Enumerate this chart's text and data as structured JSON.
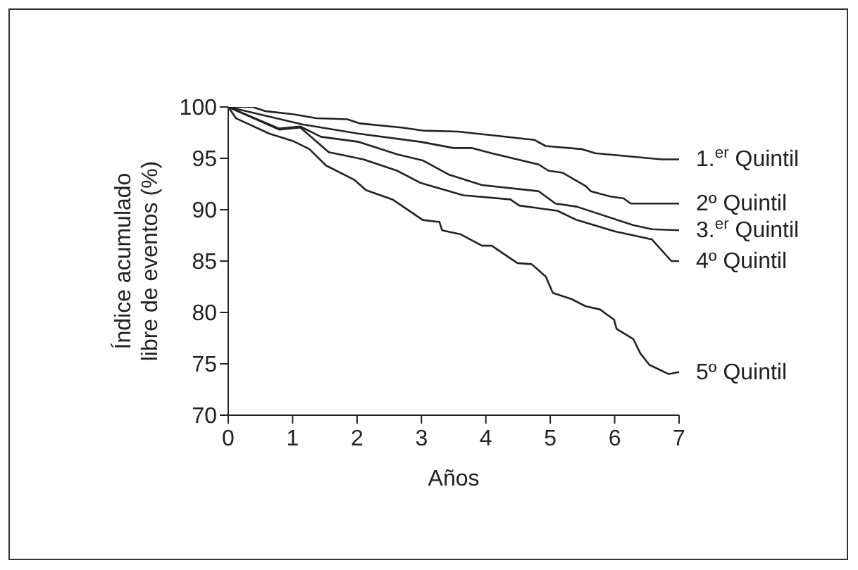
{
  "chart_data": {
    "type": "line",
    "xlabel": "Años",
    "ylabel": "Índice acumulado\nlibre de eventos (%)",
    "xlim": [
      0,
      7
    ],
    "xticks": [
      0,
      1,
      2,
      3,
      4,
      5,
      6,
      7
    ],
    "ylim": [
      70,
      100
    ],
    "yticks": [
      70,
      75,
      80,
      85,
      90,
      95,
      100
    ],
    "grid": false,
    "legend": false,
    "marker": "none",
    "line_style": "solid",
    "series": [
      {
        "name": "1.$^{er}$ Quintil",
        "color": "#222222",
        "x": [
          0,
          0.38,
          0.57,
          1.0,
          1.37,
          1.85,
          2.04,
          2.69,
          3.02,
          3.57,
          4.75,
          4.93,
          5.48,
          5.7,
          6.73,
          7
        ],
        "values": [
          100,
          100,
          99.6,
          99.3,
          98.9,
          98.8,
          98.4,
          98.0,
          97.7,
          97.6,
          96.8,
          96.2,
          95.9,
          95.5,
          94.9,
          94.9
        ]
      },
      {
        "name": "2º Quintil",
        "color": "#222222",
        "x": [
          0,
          1.15,
          2.03,
          2.99,
          3.5,
          3.79,
          4.09,
          4.82,
          4.97,
          5.19,
          5.55,
          5.63,
          5.92,
          6.14,
          6.25,
          7
        ],
        "values": [
          100,
          98.3,
          97.4,
          96.6,
          96.0,
          96.0,
          95.5,
          94.4,
          93.8,
          93.6,
          92.3,
          91.8,
          91.3,
          91.1,
          90.6,
          90.6
        ]
      },
      {
        "name": "3.$^{er}$ Quintil",
        "color": "#222222",
        "x": [
          0,
          0.79,
          1.12,
          1.44,
          2.03,
          2.62,
          3.02,
          3.43,
          3.94,
          4.82,
          5.08,
          5.41,
          6.29,
          6.58,
          7
        ],
        "values": [
          100,
          97.9,
          98.1,
          97.1,
          96.6,
          95.4,
          94.8,
          93.4,
          92.4,
          91.8,
          90.6,
          90.3,
          88.5,
          88.1,
          88.0
        ]
      },
      {
        "name": "4º Quintil",
        "color": "#222222",
        "x": [
          0,
          0.79,
          1.12,
          1.56,
          2.1,
          2.62,
          2.99,
          3.65,
          4.38,
          4.52,
          5.11,
          5.41,
          6.0,
          6.58,
          6.88,
          7
        ],
        "values": [
          100,
          97.8,
          98.0,
          95.6,
          94.9,
          93.8,
          92.6,
          91.4,
          91.0,
          90.4,
          89.9,
          89.0,
          87.9,
          87.1,
          85.0,
          85.0
        ]
      },
      {
        "name": "5º Quintil",
        "color": "#222222",
        "x": [
          0,
          0.12,
          0.64,
          1.0,
          1.26,
          1.52,
          1.96,
          2.14,
          2.55,
          3.02,
          3.28,
          3.32,
          3.61,
          3.94,
          4.09,
          4.49,
          4.71,
          4.93,
          5.04,
          5.33,
          5.55,
          5.77,
          5.99,
          6.03,
          6.29,
          6.4,
          6.54,
          6.84,
          7
        ],
        "values": [
          100,
          98.9,
          97.4,
          96.7,
          95.9,
          94.3,
          92.9,
          91.9,
          91.0,
          89.0,
          88.8,
          88.0,
          87.6,
          86.5,
          86.5,
          84.8,
          84.7,
          83.5,
          81.9,
          81.3,
          80.6,
          80.3,
          79.3,
          78.4,
          77.4,
          76.0,
          74.9,
          74.0,
          74.2
        ]
      }
    ]
  }
}
